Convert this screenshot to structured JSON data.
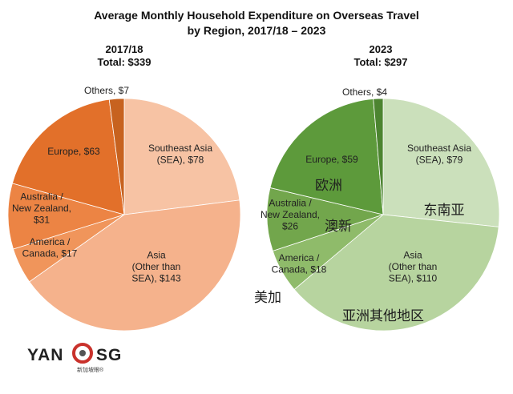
{
  "chart_title": [
    "Average Monthly Household Expenditure on Overseas Travel",
    "by Region, 2017/18 – 2023"
  ],
  "logo": {
    "text_left": "YAN",
    "text_right": "SG",
    "subtext": "新加坡眼®"
  },
  "colors": {
    "left_base": "#e8762b",
    "right_base": "#5d9a3b"
  },
  "chart_data": [
    {
      "type": "pie",
      "year": "2017/18",
      "total_label": "Total: $339",
      "slices": [
        {
          "label": "Southeast Asia (SEA), $78",
          "lines": [
            "Southeast Asia",
            "(SEA), $78"
          ],
          "value": 78,
          "color": "#f7c3a4"
        },
        {
          "label": "Asia (Other than SEA), $143",
          "lines": [
            "Asia",
            "(Other than",
            "SEA), $143"
          ],
          "value": 143,
          "color": "#f5b28c"
        },
        {
          "label": "America / Canada, $17",
          "lines": [
            "America /",
            "Canada, $17"
          ],
          "value": 17,
          "color": "#f0955b"
        },
        {
          "label": "Australia / New Zealand, $31",
          "lines": [
            "Australia /",
            "New Zealand,",
            "$31"
          ],
          "value": 31,
          "color": "#ec8444"
        },
        {
          "label": "Europe, $63",
          "lines": [
            "Europe, $63"
          ],
          "value": 63,
          "color": "#e2702a"
        },
        {
          "label": "Others, $7",
          "lines": [
            "Others, $7"
          ],
          "value": 7,
          "color": "#c7621f"
        }
      ]
    },
    {
      "type": "pie",
      "year": "2023",
      "total_label": "Total: $297",
      "slices": [
        {
          "label": "Southeast Asia (SEA), $79",
          "lines": [
            "Southeast Asia",
            "(SEA), $79"
          ],
          "value": 79,
          "color": "#cbe0bb",
          "chinese": "东南亚"
        },
        {
          "label": "Asia (Other than SEA), $110",
          "lines": [
            "Asia",
            "(Other than",
            "SEA), $110"
          ],
          "value": 110,
          "color": "#b7d49f",
          "chinese": "亚洲其他地区"
        },
        {
          "label": "America / Canada, $18",
          "lines": [
            "America /",
            "Canada, $18"
          ],
          "value": 18,
          "color": "#8fbb6a",
          "chinese": "美加"
        },
        {
          "label": "Australia / New Zealand, $26",
          "lines": [
            "Australia /",
            "New Zealand,",
            "$26"
          ],
          "value": 26,
          "color": "#72a64c",
          "chinese": "澳新"
        },
        {
          "label": "Europe, $59",
          "lines": [
            "Europe, $59"
          ],
          "value": 59,
          "color": "#5d9a3b",
          "chinese": "欧洲"
        },
        {
          "label": "Others, $4",
          "lines": [
            "Others, $4"
          ],
          "value": 4,
          "color": "#4c8430"
        }
      ]
    }
  ]
}
